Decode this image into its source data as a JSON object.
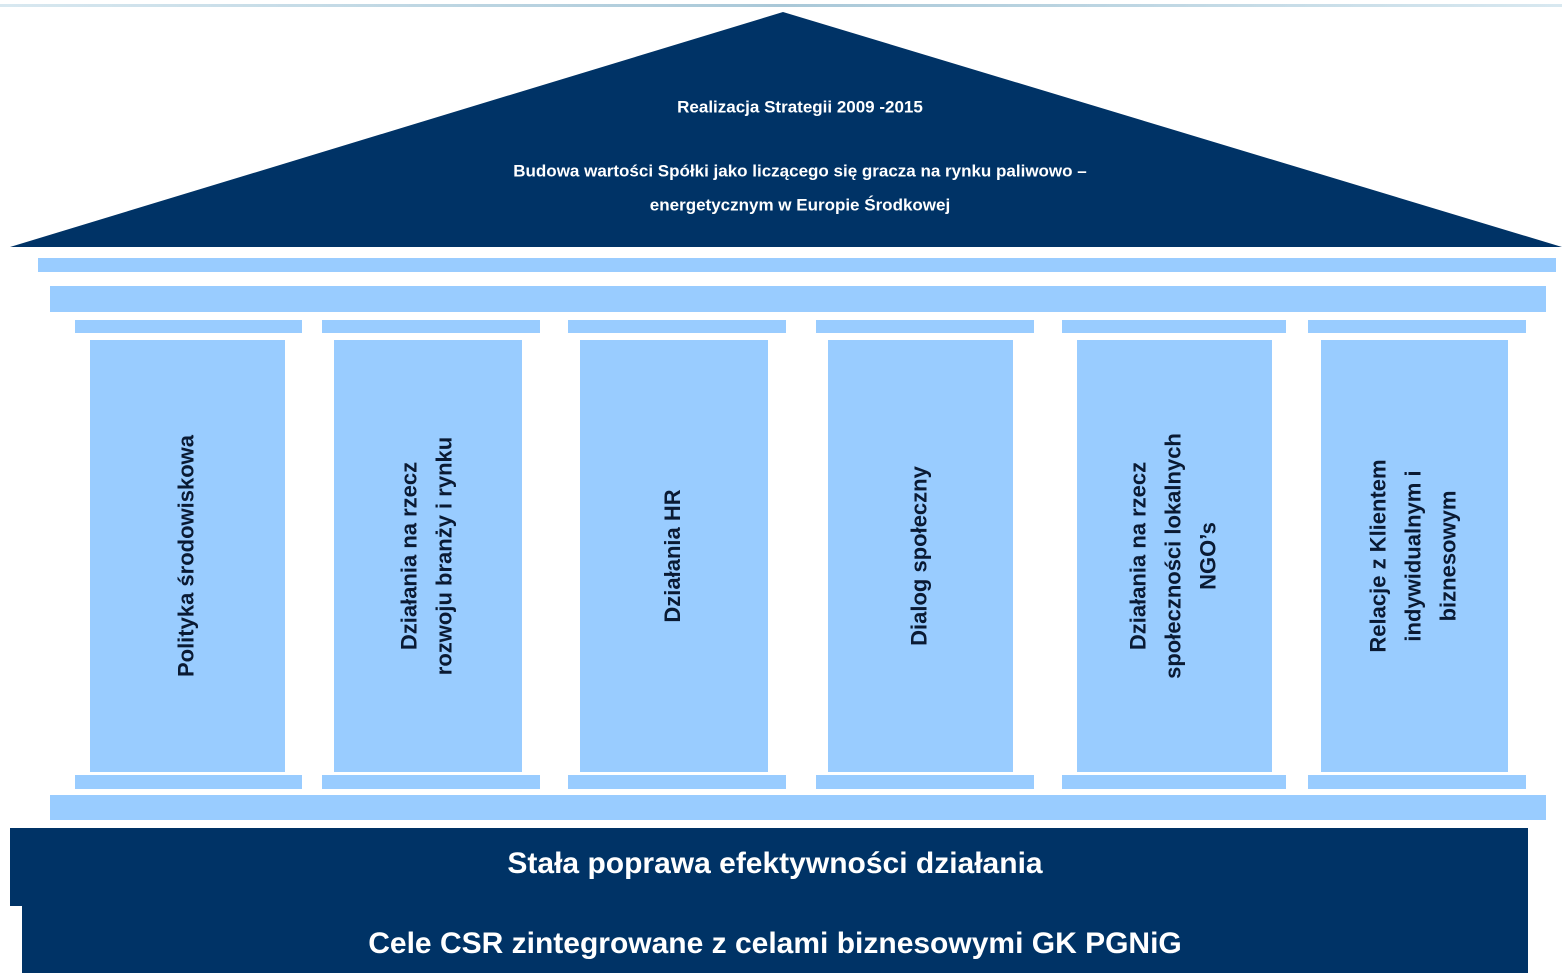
{
  "roof": {
    "title": "Realizacja Strategii 2009 -2015",
    "lines": [
      "Budowa wartości Spółki jako liczącego się gracza na rynku paliwowo –",
      "energetycznym w  Europie Środkowej"
    ]
  },
  "columns": [
    {
      "lines": [
        "Polityka środowiskowa"
      ]
    },
    {
      "lines": [
        "Działania na rzecz",
        "rozwoju branży i rynku"
      ]
    },
    {
      "lines": [
        "Działania HR"
      ]
    },
    {
      "lines": [
        "Dialog społeczny"
      ]
    },
    {
      "lines": [
        "Działania na rzecz",
        "społeczności lokalnych",
        "NGO’s"
      ]
    },
    {
      "lines": [
        "Relacje z Klientem",
        "indywidualnym i",
        "biznesowym"
      ]
    }
  ],
  "base": {
    "upper": "Stała poprawa efektywności działania",
    "lower": "Cele CSR zintegrowane z celami biznesowymi GK PGNiG"
  }
}
